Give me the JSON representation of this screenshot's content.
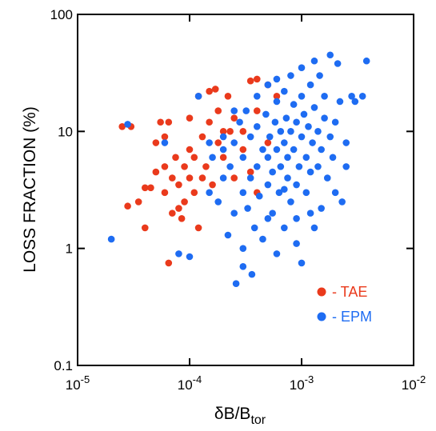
{
  "chart_data": {
    "type": "scatter",
    "x_label": "δB/B",
    "x_label_sub": "tor",
    "y_label": "LOSS FRACTION (%)",
    "xscale": "log",
    "yscale": "log",
    "xlim": [
      1e-05,
      0.01
    ],
    "ylim": [
      0.1,
      100
    ],
    "xticks": [
      {
        "value": 1e-05,
        "label": "10",
        "exponent": "-5"
      },
      {
        "value": 0.0001,
        "label": "10",
        "exponent": "-4"
      },
      {
        "value": 0.001,
        "label": "10",
        "exponent": "-3"
      },
      {
        "value": 0.01,
        "label": "10",
        "exponent": "-2"
      }
    ],
    "yticks": [
      0.1,
      1,
      10,
      100
    ],
    "legend": "lower right",
    "series": [
      {
        "name": "- TAE",
        "color": "#ea3a1c",
        "x": [
          2.5e-05,
          3e-05,
          2.8e-05,
          3.5e-05,
          4e-05,
          4e-05,
          4.5e-05,
          5e-05,
          5e-05,
          5.5e-05,
          6e-05,
          6e-05,
          6e-05,
          6.5e-05,
          7e-05,
          7e-05,
          7.5e-05,
          8e-05,
          8e-05,
          8.5e-05,
          9e-05,
          9e-05,
          0.0001,
          0.0001,
          0.0001,
          0.00011,
          0.00011,
          0.00012,
          0.00012,
          0.00013,
          0.00013,
          0.00014,
          0.00015,
          0.00015,
          0.00016,
          0.00018,
          0.00018,
          0.0002,
          0.0002,
          0.00022,
          0.00025,
          0.00025,
          0.0003,
          0.0003,
          0.00035,
          0.00035,
          0.0004,
          0.0004,
          0.0004,
          0.0005,
          0.0005,
          0.0006,
          6.5e-05,
          0.00017,
          0.00023
        ],
        "values": [
          11,
          11,
          2.3,
          2.5,
          1.5,
          3.3,
          3.3,
          4.5,
          8,
          12,
          9,
          5,
          3,
          0.75,
          2,
          4,
          6,
          2.2,
          3.5,
          1.8,
          5,
          2.5,
          4,
          7,
          13,
          3,
          6,
          1.5,
          20,
          4,
          9,
          5,
          12,
          22,
          3.5,
          8,
          15,
          6,
          10,
          20,
          13,
          4,
          10,
          7,
          27,
          4.5,
          3,
          28,
          15,
          25,
          8,
          20,
          12,
          23,
          10
        ]
      },
      {
        "name": "- EPM",
        "color": "#1e6cf2",
        "x": [
          2e-05,
          2.8e-05,
          6e-05,
          8e-05,
          0.0001,
          0.00012,
          0.00015,
          0.00016,
          0.00018,
          0.0002,
          0.0002,
          0.00022,
          0.00023,
          0.00025,
          0.00025,
          0.00026,
          0.00028,
          0.0003,
          0.0003,
          0.0003,
          0.00032,
          0.00033,
          0.00035,
          0.00035,
          0.00036,
          0.00038,
          0.0004,
          0.0004,
          0.0004,
          0.00042,
          0.00045,
          0.00045,
          0.00048,
          0.0005,
          0.0005,
          0.0005,
          0.00052,
          0.00055,
          0.00055,
          0.00058,
          0.0006,
          0.0006,
          0.0006,
          0.00063,
          0.00065,
          0.00065,
          0.0007,
          0.0007,
          0.0007,
          0.00073,
          0.00075,
          0.00075,
          0.0008,
          0.0008,
          0.0008,
          0.00085,
          0.00085,
          0.0009,
          0.0009,
          0.0009,
          0.00095,
          0.001,
          0.001,
          0.001,
          0.001,
          0.00105,
          0.0011,
          0.0011,
          0.00115,
          0.0012,
          0.0012,
          0.00125,
          0.0013,
          0.0013,
          0.0014,
          0.0014,
          0.00145,
          0.0015,
          0.0015,
          0.0016,
          0.0016,
          0.0017,
          0.0018,
          0.0018,
          0.0019,
          0.002,
          0.002,
          0.0021,
          0.0022,
          0.0023,
          0.0025,
          0.0025,
          0.0028,
          0.003,
          0.0035,
          0.0038,
          0.0013,
          0.0006,
          0.00025,
          0.00015,
          0.0003,
          0.0009,
          0.0005,
          0.0007,
          0.0012,
          0.0002
        ],
        "values": [
          1.2,
          11.5,
          8,
          0.9,
          0.85,
          20,
          3,
          6,
          2.5,
          4,
          9,
          1.3,
          5,
          2,
          8,
          0.5,
          12,
          3,
          1,
          6,
          15,
          2.2,
          4,
          9,
          0.6,
          1.5,
          5,
          11,
          20,
          2.8,
          7,
          1.2,
          14,
          3.5,
          6,
          25,
          9,
          2,
          4.5,
          12,
          7,
          0.9,
          18,
          3,
          10,
          5,
          1.5,
          8,
          22,
          13,
          4,
          6,
          2.5,
          10,
          30,
          17,
          7,
          3.5,
          12,
          1.8,
          5,
          0.75,
          9,
          20,
          35,
          14,
          6,
          3,
          11,
          25,
          4.5,
          8,
          16,
          1.5,
          5,
          10,
          30,
          2.2,
          7,
          13,
          20,
          4,
          45,
          9,
          6,
          3,
          12,
          38,
          18,
          2.5,
          8,
          5,
          20,
          18,
          20,
          40,
          40,
          28,
          15,
          8,
          0.7,
          1.1,
          1.8,
          3.2,
          2,
          7
        ]
      }
    ]
  }
}
